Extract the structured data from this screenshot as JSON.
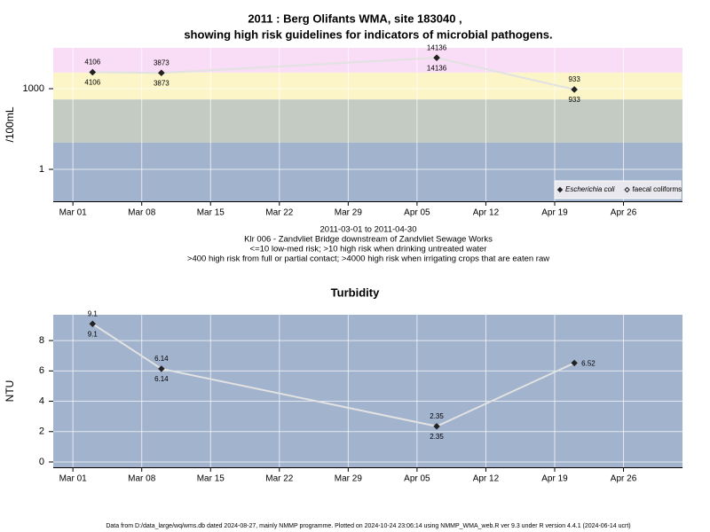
{
  "chart_data": [
    {
      "type": "line",
      "title": "2011 : Berg Olifants WMA, site 183040 ,",
      "subtitle": "showing high risk guidelines for indicators of microbial pathogens.",
      "y_label": "/100mL",
      "log_y": true,
      "x": [
        "2011-03-03",
        "2011-03-10",
        "2011-04-07",
        "2011-04-21"
      ],
      "series": [
        {
          "name": "Escherichia coli",
          "color": "#222222",
          "marker": "filled",
          "label_position": "above",
          "values": [
            4106,
            3873,
            14136,
            933
          ]
        },
        {
          "name": "faecal coliforms",
          "color": "#222222",
          "marker": "open",
          "label_position": "below",
          "values": [
            4106,
            3873,
            14136,
            933
          ]
        }
      ],
      "line_color": "#e2e2e2",
      "xlim": [
        "2011-02-27",
        "2011-05-02"
      ],
      "xticks": [
        {
          "value": "2011-03-01",
          "label": "Mar 01"
        },
        {
          "value": "2011-03-08",
          "label": "Mar 08"
        },
        {
          "value": "2011-03-15",
          "label": "Mar 15"
        },
        {
          "value": "2011-03-22",
          "label": "Mar 22"
        },
        {
          "value": "2011-03-29",
          "label": "Mar 29"
        },
        {
          "value": "2011-04-05",
          "label": "Apr 05"
        },
        {
          "value": "2011-04-12",
          "label": "Apr 12"
        },
        {
          "value": "2011-04-19",
          "label": "Apr 19"
        },
        {
          "value": "2011-04-26",
          "label": "Apr 26"
        }
      ],
      "ylim": [
        0.065,
        33000
      ],
      "yticks": [
        1,
        1000
      ],
      "thresholds": [
        10,
        400,
        4000
      ],
      "band_colors": [
        "#a2b3cd",
        "#c4cbc2",
        "#fbf5c8",
        "#f9dcf5"
      ],
      "grid": true,
      "legend": "bottom-right",
      "notes": [
        "2011-03-01 to 2011-04-30",
        "Klr 006 - Zandvliet Bridge downstream of Zandvliet Sewage Works",
        "<=10 low-med risk; >10 high risk when drinking untreated water",
        ">400 high risk from full or partial contact; >4000 high risk when irrigating crops that are eaten raw"
      ]
    },
    {
      "type": "line",
      "title": "Turbidity",
      "y_label": "NTU",
      "log_y": false,
      "x": [
        "2011-03-03",
        "2011-03-10",
        "2011-04-07",
        "2011-04-21"
      ],
      "series": [
        {
          "color": "#222222",
          "marker": "filled",
          "values": [
            9.1,
            6.14,
            2.35,
            6.52
          ]
        }
      ],
      "label_positions": [
        "both",
        "both",
        "both",
        "right"
      ],
      "line_color": "#e2e2e2",
      "xlim": [
        "2011-02-27",
        "2011-05-02"
      ],
      "xticks": [
        {
          "value": "2011-03-01",
          "label": "Mar 01"
        },
        {
          "value": "2011-03-08",
          "label": "Mar 08"
        },
        {
          "value": "2011-03-15",
          "label": "Mar 15"
        },
        {
          "value": "2011-03-22",
          "label": "Mar 22"
        },
        {
          "value": "2011-03-29",
          "label": "Mar 29"
        },
        {
          "value": "2011-04-05",
          "label": "Apr 05"
        },
        {
          "value": "2011-04-12",
          "label": "Apr 12"
        },
        {
          "value": "2011-04-19",
          "label": "Apr 19"
        },
        {
          "value": "2011-04-26",
          "label": "Apr 26"
        }
      ],
      "ylim": [
        -0.35,
        9.7
      ],
      "yticks": [
        0,
        2,
        4,
        6,
        8
      ],
      "band_colors": [
        "#a2b3cd"
      ],
      "grid": true
    }
  ],
  "footer": "Data from D:/data_large/wq/wms.db dated 2024-08-27, mainly NMMP programme. Plotted on 2024-10-24 23:06:14 using NMMP_WMA_web.R ver 9.3 under R version 4.4.1 (2024-06-14 ucrt)"
}
